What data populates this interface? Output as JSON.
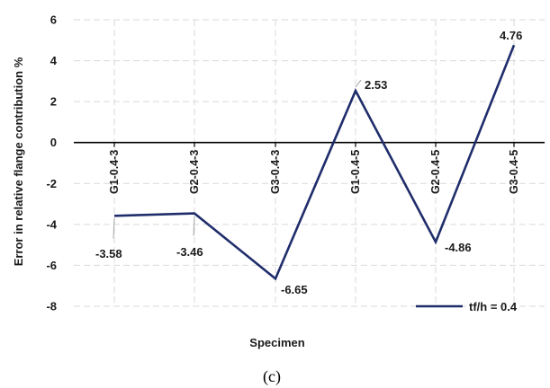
{
  "chart_data": {
    "type": "line",
    "categories": [
      "G1-0.4-3",
      "G2-0.4-3",
      "G3-0.4-3",
      "G1-0.4-5",
      "G2-0.4-5",
      "G3-0.4-5"
    ],
    "series": [
      {
        "name": "tf/h = 0.4",
        "values": [
          -3.58,
          -3.46,
          -6.65,
          2.53,
          -4.86,
          4.76
        ],
        "color": "#1f2d6b"
      }
    ],
    "data_labels": [
      "-3.58",
      "-3.46",
      "-6.65",
      "2.53",
      "-4.86",
      "4.76"
    ],
    "xlabel": "Specimen",
    "ylabel": "Error in relative flange contribution %",
    "ylim": [
      -8,
      6
    ],
    "yticks": [
      -8,
      -6,
      -4,
      -2,
      0,
      2,
      4,
      6
    ],
    "ytick_labels": [
      "-8",
      "-6",
      "-4",
      "-2",
      "0",
      "2",
      "4",
      "6"
    ],
    "grid": true,
    "legend_position": "bottom-right",
    "caption": "(c)"
  }
}
